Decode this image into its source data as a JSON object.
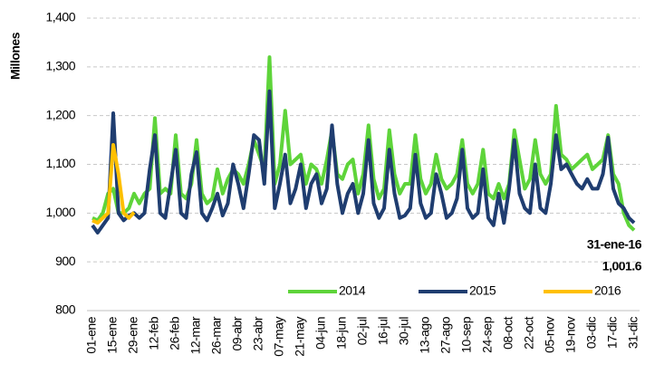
{
  "chart_data": {
    "type": "line",
    "y_label": "Millones",
    "categories": [
      "01-ene",
      null,
      null,
      null,
      "15-ene",
      null,
      null,
      null,
      "29-ene",
      null,
      null,
      null,
      "12-feb",
      null,
      null,
      null,
      "26-feb",
      null,
      null,
      null,
      "12-mar",
      null,
      null,
      null,
      "26-mar",
      null,
      null,
      null,
      "09-abr",
      null,
      null,
      null,
      "23-abr",
      null,
      null,
      null,
      "07-may",
      null,
      null,
      null,
      "21-may",
      null,
      null,
      null,
      "04-jun",
      null,
      null,
      null,
      "18-jun",
      null,
      null,
      null,
      "02-jul",
      null,
      null,
      null,
      "16-jul",
      null,
      null,
      null,
      "30-jul",
      null,
      null,
      null,
      "13-ago",
      null,
      null,
      null,
      "27-ago",
      null,
      null,
      null,
      "10-sep",
      null,
      null,
      null,
      "24-sep",
      null,
      null,
      null,
      "08-oct",
      null,
      null,
      null,
      "22-oct",
      null,
      null,
      null,
      "05-nov",
      null,
      null,
      null,
      "19-nov",
      null,
      null,
      null,
      "03-dic",
      null,
      null,
      null,
      "17-dic",
      null,
      null,
      null,
      "31-dic"
    ],
    "series": [
      {
        "name": "2014",
        "color": "#5ed43a",
        "values": [
          990,
          985,
          1000,
          1040,
          1050,
          1000,
          1000,
          1010,
          1040,
          1020,
          1040,
          1050,
          1195,
          1040,
          1050,
          1040,
          1160,
          1040,
          1030,
          1060,
          1150,
          1040,
          1020,
          1030,
          1090,
          1040,
          1070,
          1090,
          1080,
          1060,
          1100,
          1150,
          1120,
          1090,
          1320,
          1060,
          1100,
          1210,
          1100,
          1110,
          1120,
          1060,
          1100,
          1090,
          1060,
          1110,
          1170,
          1080,
          1070,
          1100,
          1110,
          1040,
          1080,
          1180,
          1070,
          1030,
          1050,
          1170,
          1080,
          1040,
          1060,
          1060,
          1160,
          1070,
          1040,
          1060,
          1120,
          1070,
          1050,
          1060,
          1080,
          1150,
          1060,
          1040,
          1060,
          1130,
          1040,
          1030,
          1060,
          1030,
          1060,
          1170,
          1110,
          1050,
          1070,
          1150,
          1080,
          1060,
          1080,
          1220,
          1120,
          1110,
          1090,
          1100,
          1110,
          1120,
          1090,
          1100,
          1110,
          1160,
          1080,
          1060,
          1000,
          975,
          965
        ]
      },
      {
        "name": "2015",
        "color": "#1f3d70",
        "values": [
          975,
          960,
          975,
          990,
          1205,
          1000,
          985,
          995,
          1000,
          990,
          1000,
          1090,
          1160,
          1000,
          990,
          1060,
          1130,
          1000,
          990,
          1080,
          1125,
          1000,
          985,
          1010,
          1040,
          995,
          1020,
          1100,
          1060,
          1010,
          1080,
          1160,
          1150,
          1060,
          1250,
          1010,
          1060,
          1120,
          1020,
          1050,
          1100,
          1010,
          1060,
          1080,
          1020,
          1050,
          1180,
          1060,
          1000,
          1040,
          1060,
          1000,
          1040,
          1150,
          1020,
          990,
          1010,
          1130,
          1040,
          990,
          995,
          1010,
          1120,
          1020,
          990,
          1000,
          1080,
          1040,
          990,
          1000,
          1030,
          1130,
          1010,
          990,
          1000,
          1090,
          990,
          975,
          1040,
          980,
          1050,
          1150,
          1040,
          1010,
          1000,
          1100,
          1010,
          1000,
          1060,
          1160,
          1090,
          1100,
          1080,
          1060,
          1050,
          1070,
          1050,
          1050,
          1080,
          1155,
          1050,
          1020,
          1010,
          990,
          980
        ]
      },
      {
        "name": "2016",
        "color": "#ffc000",
        "values": [
          985,
          980,
          990,
          1000,
          1140,
          1080,
          1000,
          990,
          1001.6,
          null,
          null,
          null,
          null,
          null,
          null,
          null,
          null,
          null,
          null,
          null,
          null,
          null,
          null,
          null,
          null,
          null,
          null,
          null,
          null,
          null,
          null,
          null,
          null,
          null,
          null,
          null,
          null,
          null,
          null,
          null,
          null,
          null,
          null,
          null,
          null,
          null,
          null,
          null,
          null,
          null,
          null,
          null,
          null,
          null,
          null,
          null,
          null,
          null,
          null,
          null,
          null,
          null,
          null,
          null,
          null,
          null,
          null,
          null,
          null,
          null,
          null,
          null,
          null,
          null,
          null,
          null,
          null,
          null,
          null,
          null,
          null,
          null,
          null,
          null,
          null,
          null,
          null,
          null,
          null,
          null,
          null,
          null,
          null,
          null,
          null,
          null,
          null,
          null,
          null,
          null,
          null,
          null,
          null,
          null,
          null
        ]
      }
    ],
    "annotation": {
      "label": "31-ene-16",
      "value_label": "1,001.6"
    },
    "ylim": [
      800,
      1400
    ],
    "yticks": [
      800,
      900,
      {
        "value": 1000,
        "label": "1,000"
      },
      {
        "value": 1100,
        "label": "1,100"
      },
      {
        "value": 1200,
        "label": "1,200"
      },
      {
        "value": 1300,
        "label": "1,300"
      },
      {
        "value": 1400,
        "label": "1,400"
      }
    ],
    "grid": true,
    "legend": "bottom-right"
  }
}
